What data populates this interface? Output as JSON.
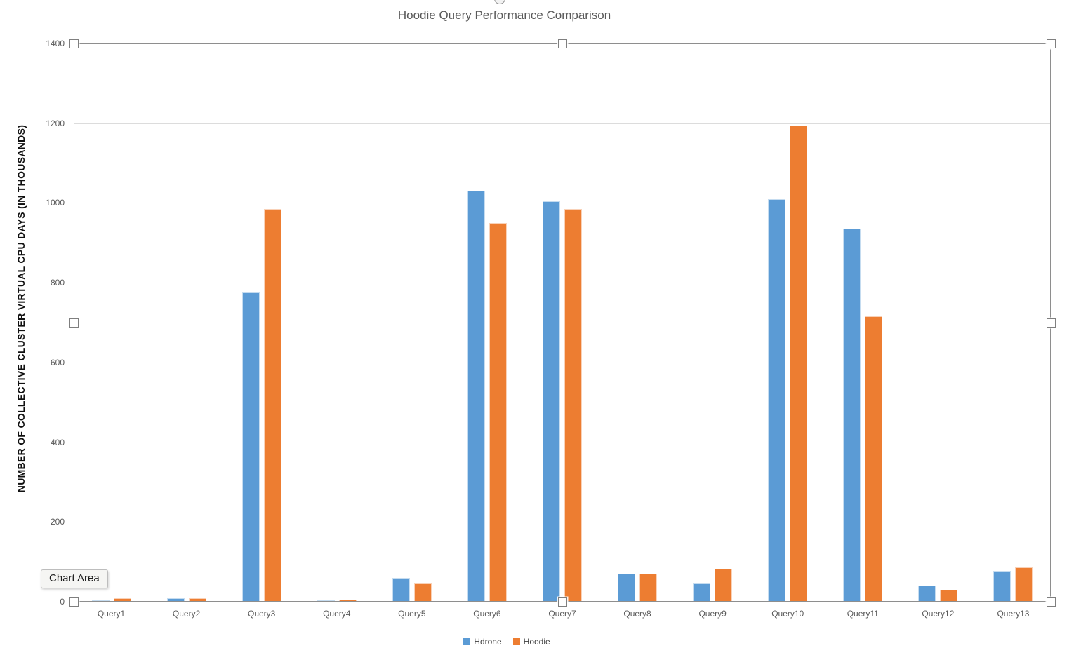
{
  "window": {
    "background": "#ffffff"
  },
  "tooltip": {
    "label": "Chart Area"
  },
  "selection": {
    "handles": [
      "top-left",
      "top-center",
      "top-right",
      "middle-left",
      "middle-right",
      "bottom-left",
      "bottom-center",
      "bottom-right"
    ]
  },
  "colors": {
    "hdrone_series": "#5B9BD5",
    "hoodie_series": "#ED7D31",
    "gridline": "#dcdcdc",
    "axis_text": "#595959",
    "title_text": "#595959",
    "axis_line": "#8a8a8a"
  },
  "chart_data": {
    "type": "bar",
    "title": "Hoodie Query Performance Comparison",
    "xlabel": "",
    "ylabel": "NUMBER OF COLLECTIVE CLUSTER VIRTUAL CPU DAYS (IN THOUSANDS)",
    "ylim": [
      0,
      1400
    ],
    "ytick_interval": 200,
    "yticks": [
      0,
      200,
      400,
      600,
      800,
      1000,
      1200,
      1400
    ],
    "grid": true,
    "legend_position": "bottom",
    "categories": [
      "Query1",
      "Query2",
      "Query3",
      "Query4",
      "Query5",
      "Query6",
      "Query7",
      "Query8",
      "Query9",
      "Query10",
      "Query11",
      "Query12",
      "Query13"
    ],
    "series": [
      {
        "name": "Hdrone",
        "color": "#5B9BD5",
        "values": [
          4,
          8,
          775,
          4,
          60,
          1030,
          1005,
          70,
          45,
          1010,
          935,
          40,
          78
        ]
      },
      {
        "name": "Hoodie",
        "color": "#ED7D31",
        "values": [
          8,
          8,
          985,
          5,
          46,
          950,
          985,
          70,
          83,
          1195,
          715,
          30,
          87
        ]
      }
    ]
  }
}
